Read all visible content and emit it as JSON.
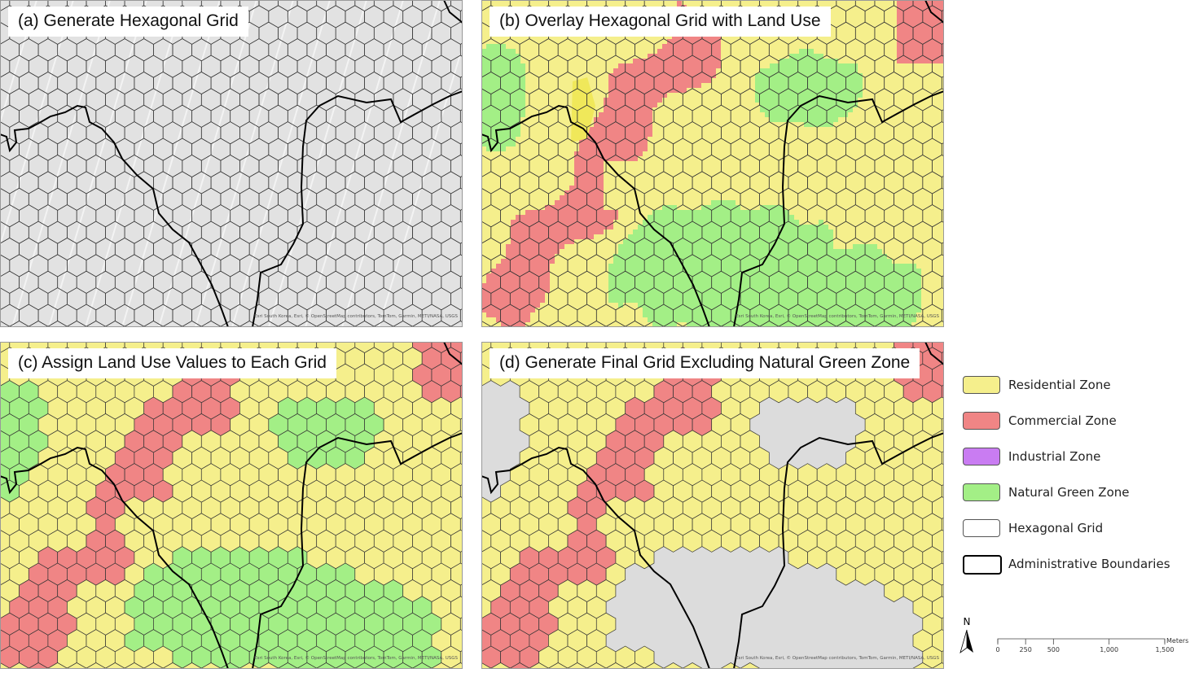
{
  "panels": [
    {
      "title": "(a) Generate Hexagonal Grid",
      "attribution": "Esri South Korea, Esri, © OpenStreetMap contributors, TomTom, Garmin, METI/NASA, USGS"
    },
    {
      "title": "(b) Overlay Hexagonal Grid with Land Use",
      "attribution": "Esri South Korea, Esri, © OpenStreetMap contributors, TomTom, Garmin, METI/NASA, USGS"
    },
    {
      "title": "(c) Assign Land Use Values to Each Grid",
      "attribution": "Esri South Korea, Esri, © OpenStreetMap contributors, TomTom, Garmin, METI/NASA, USGS"
    },
    {
      "title": "(d) Generate Final Grid Excluding Natural Green Zone",
      "attribution": "Esri South Korea, Esri, © OpenStreetMap contributors, TomTom, Garmin, METI/NASA, USGS"
    }
  ],
  "legend": [
    {
      "label": "Residential Zone",
      "color": "#f5ef8c"
    },
    {
      "label": "Commercial Zone",
      "color": "#f08585"
    },
    {
      "label": "Industrial Zone",
      "color": "#c97cf2"
    },
    {
      "label": "Natural Green Zone",
      "color": "#a3ef86"
    },
    {
      "label": "Hexagonal Grid",
      "color": "#ffffff"
    },
    {
      "label": "Administrative Boundaries",
      "color": "#ffffff"
    }
  ],
  "north_arrow": "N",
  "scale_bar": {
    "unit": "Meters",
    "ticks": [
      0,
      250,
      500,
      {
        "value": 1000,
        "label": "1,000"
      },
      {
        "value": 1500,
        "label": "1,500"
      }
    ]
  }
}
